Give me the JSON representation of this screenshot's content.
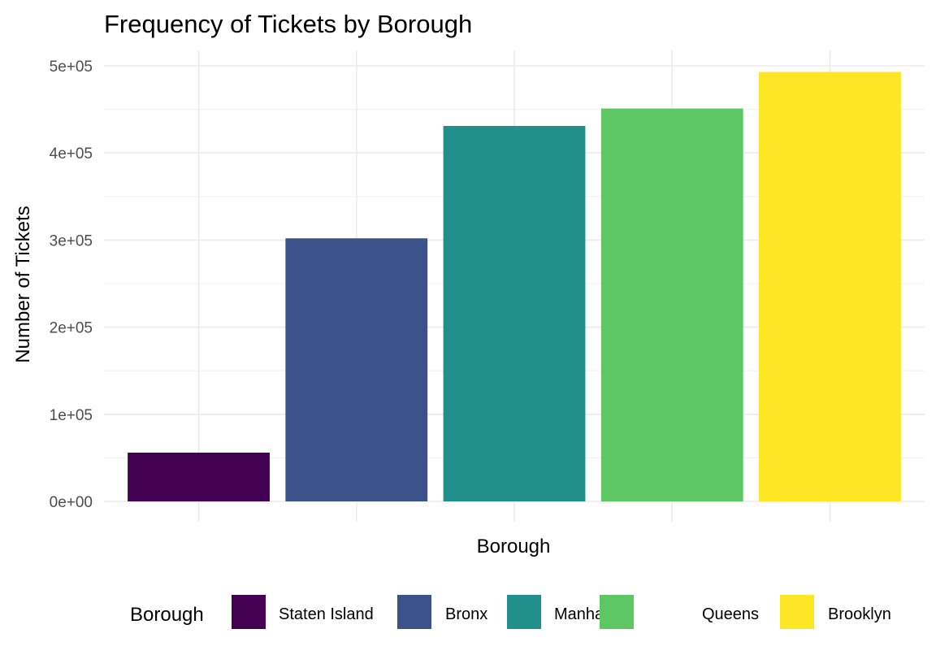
{
  "chart_data": {
    "type": "bar",
    "title": "Frequency of Tickets by Borough",
    "xlabel": "Borough",
    "ylabel": "Number of Tickets",
    "categories": [
      "Staten Island",
      "Bronx",
      "Manhattan",
      "Queens",
      "Brooklyn"
    ],
    "values": [
      56000,
      302000,
      431000,
      451000,
      493000
    ],
    "colors": [
      "#440154",
      "#3b528b",
      "#21908c",
      "#5dc863",
      "#fde725"
    ],
    "ylim": [
      0,
      500000
    ],
    "yticks": [
      0,
      100000,
      200000,
      300000,
      400000,
      500000
    ],
    "ytick_labels": [
      "0e+00",
      "1e+05",
      "2e+05",
      "3e+05",
      "4e+05",
      "5e+05"
    ],
    "grid": true,
    "legend": {
      "title": "Borough",
      "position": "bottom",
      "entries": [
        "Staten Island",
        "Bronx",
        "Manhattan",
        "Queens",
        "Brooklyn"
      ]
    }
  }
}
